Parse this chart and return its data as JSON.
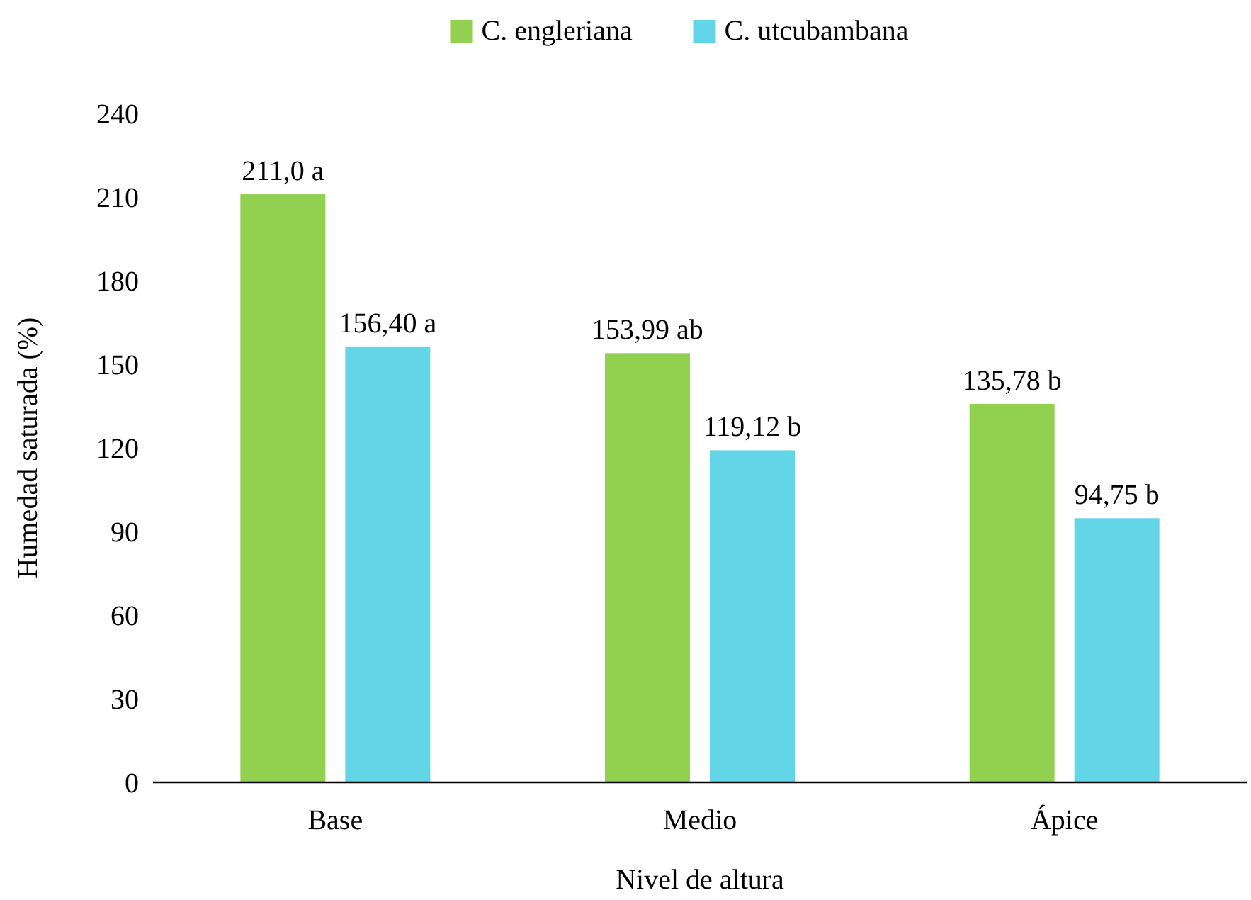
{
  "chart_data": {
    "type": "bar",
    "xlabel": "Nivel de altura",
    "ylabel": "Humedad saturada (%)",
    "categories": [
      "Base",
      "Medio",
      "Ápice"
    ],
    "series": [
      {
        "name": "C. engleriana",
        "color": "#92d050",
        "values": [
          211.0,
          153.99,
          135.78
        ],
        "value_labels": [
          "211,0 a",
          "153,99 ab",
          "135,78 b"
        ]
      },
      {
        "name": "C. utcubambana",
        "color": "#62d5e6",
        "values": [
          156.4,
          119.12,
          94.75
        ],
        "value_labels": [
          "156,40 a",
          "119,12 b",
          "94,75 b"
        ]
      }
    ],
    "ylim": [
      0,
      240
    ],
    "yticks": [
      0,
      30,
      60,
      90,
      120,
      150,
      180,
      210,
      240
    ],
    "grid": false,
    "legend": "top"
  }
}
